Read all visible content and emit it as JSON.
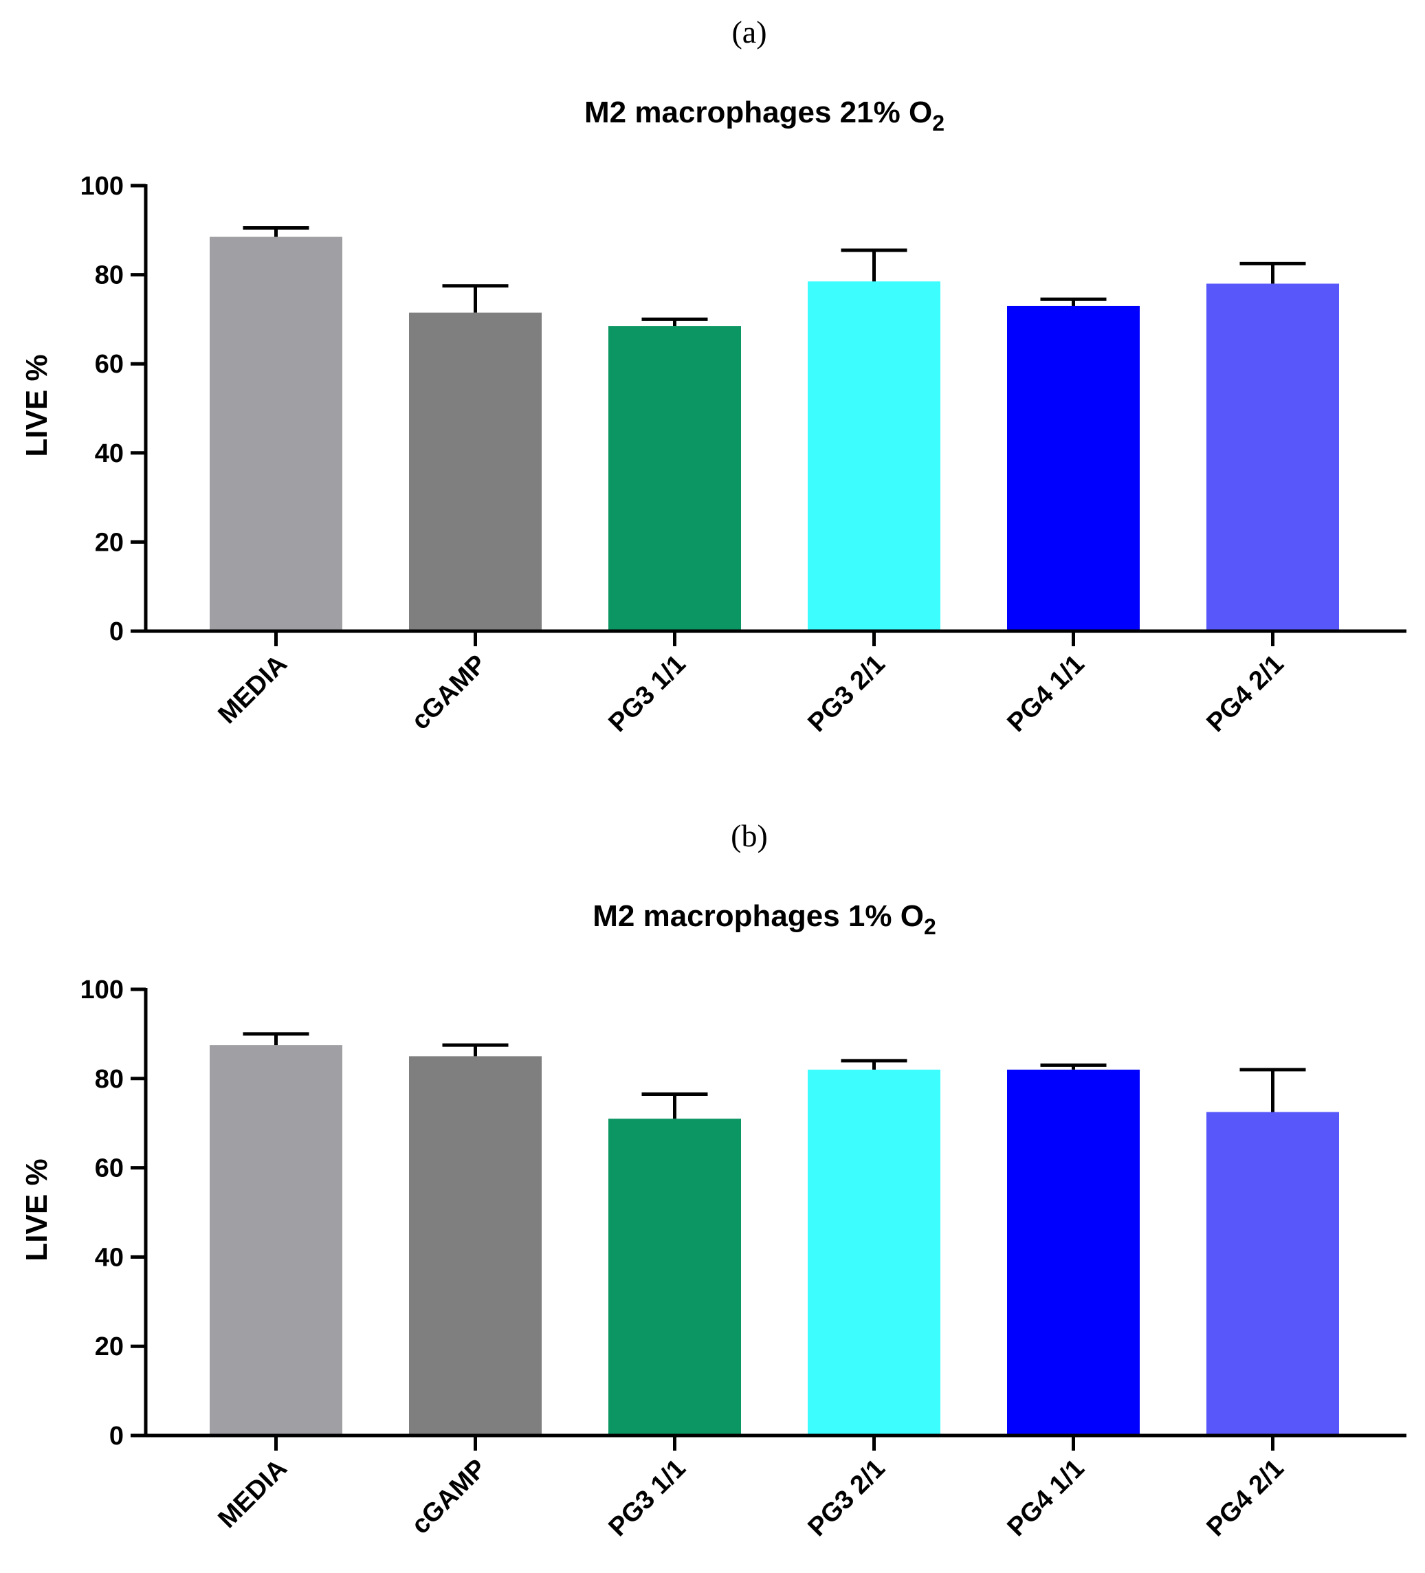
{
  "chart_data": [
    {
      "type": "bar",
      "panel_label": "(a)",
      "title": "M2 macrophages 21% O",
      "title_subscript": "2",
      "xlabel": "",
      "ylabel": "LIVE %",
      "ylim": [
        0,
        100
      ],
      "yticks": [
        "0",
        "20",
        "40",
        "60",
        "80",
        "100"
      ],
      "categories": [
        "MEDIA",
        "cGAMP",
        "PG3 1/1",
        "PG3 2/1",
        "PG4 1/1",
        "PG4 2/1"
      ],
      "values": [
        88.5,
        71.5,
        68.5,
        78.5,
        73,
        78
      ],
      "errors": [
        2,
        6,
        1.5,
        7,
        1.5,
        4.5
      ],
      "colors": [
        "#a09fa4",
        "#7f7f7f",
        "#0c9663",
        "#3dfdff",
        "#0000ff",
        "#5757fa"
      ]
    },
    {
      "type": "bar",
      "panel_label": "(b)",
      "title": "M2 macrophages 1% O",
      "title_subscript": "2",
      "xlabel": "",
      "ylabel": "LIVE %",
      "ylim": [
        0,
        100
      ],
      "yticks": [
        "0",
        "20",
        "40",
        "60",
        "80",
        "100"
      ],
      "categories": [
        "MEDIA",
        "cGAMP",
        "PG3 1/1",
        "PG3 2/1",
        "PG4 1/1",
        "PG4 2/1"
      ],
      "values": [
        87.5,
        85,
        71,
        82,
        82,
        72.5
      ],
      "errors": [
        2.5,
        2.5,
        5.5,
        2,
        1,
        9.5
      ],
      "colors": [
        "#a09fa4",
        "#7f7f7f",
        "#0c9663",
        "#3dfdff",
        "#0000ff",
        "#5757fa"
      ]
    }
  ]
}
